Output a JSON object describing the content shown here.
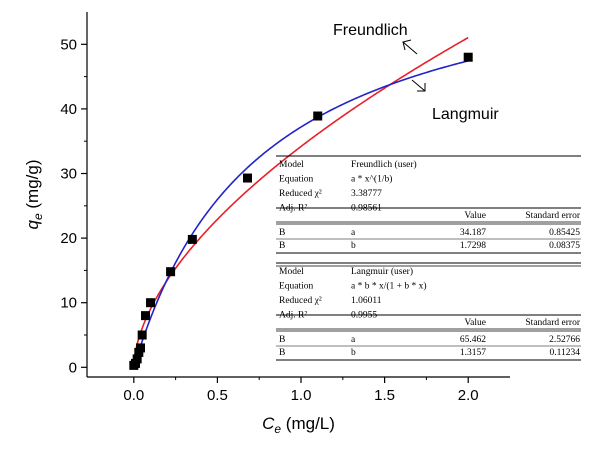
{
  "chart_data": {
    "type": "scatter",
    "xlabel": "C_e (mg/L)",
    "ylabel": "q_e (mg/g)",
    "xlim": [
      -0.28,
      2.25
    ],
    "ylim": [
      -1.5,
      55
    ],
    "x_ticks": [
      "0.0",
      "0.5",
      "1.0",
      "1.5",
      "2.0"
    ],
    "y_ticks": [
      "0",
      "10",
      "20",
      "30",
      "40",
      "50"
    ],
    "x_tick_values": [
      0,
      0.5,
      1.0,
      1.5,
      2.0
    ],
    "y_tick_values": [
      0,
      10,
      20,
      30,
      40,
      50
    ],
    "grid": false,
    "points": [
      {
        "x": 0.0,
        "y": 0.3
      },
      {
        "x": 0.01,
        "y": 0.6
      },
      {
        "x": 0.02,
        "y": 1.3
      },
      {
        "x": 0.03,
        "y": 2.3
      },
      {
        "x": 0.04,
        "y": 3.0
      },
      {
        "x": 0.05,
        "y": 5.0
      },
      {
        "x": 0.07,
        "y": 8.0
      },
      {
        "x": 0.1,
        "y": 10.0
      },
      {
        "x": 0.22,
        "y": 14.8
      },
      {
        "x": 0.35,
        "y": 19.8
      },
      {
        "x": 0.68,
        "y": 29.3
      },
      {
        "x": 1.1,
        "y": 38.9
      },
      {
        "x": 2.0,
        "y": 48.0
      }
    ],
    "series": [
      {
        "name": "Freundlich",
        "model": "freundlich",
        "a": 34.187,
        "b": 1.7298,
        "color": "#e8202a"
      },
      {
        "name": "Langmuir",
        "model": "langmuir",
        "a": 65.462,
        "b": 1.3157,
        "color": "#2323c8"
      }
    ],
    "annotations": {
      "freundlich": "Freundlich",
      "langmuir": "Langmuir"
    },
    "fit_table": {
      "freundlich": {
        "rows": [
          [
            "Model",
            "Freundlich (user)"
          ],
          [
            "Equation",
            "a * x^(1/b)"
          ],
          [
            "Reduced χ²",
            "3.38777"
          ],
          [
            "Adj. R²",
            "0.98561"
          ]
        ],
        "header": [
          "Value",
          "Standard error"
        ],
        "params": [
          [
            "B",
            "a",
            "34.187",
            "0.85425"
          ],
          [
            "B",
            "b",
            "1.7298",
            "0.08375"
          ]
        ]
      },
      "langmuir": {
        "rows": [
          [
            "Model",
            "Langmuir (user)"
          ],
          [
            "Equation",
            "a * b * x/(1 + b * x)"
          ],
          [
            "Reduced χ²",
            "1.06011"
          ],
          [
            "Adj. R²",
            "0.9955"
          ]
        ],
        "header": [
          "Value",
          "Standard error"
        ],
        "params": [
          [
            "B",
            "a",
            "65.462",
            "2.52766"
          ],
          [
            "B",
            "b",
            "1.3157",
            "0.11234"
          ]
        ]
      }
    }
  }
}
